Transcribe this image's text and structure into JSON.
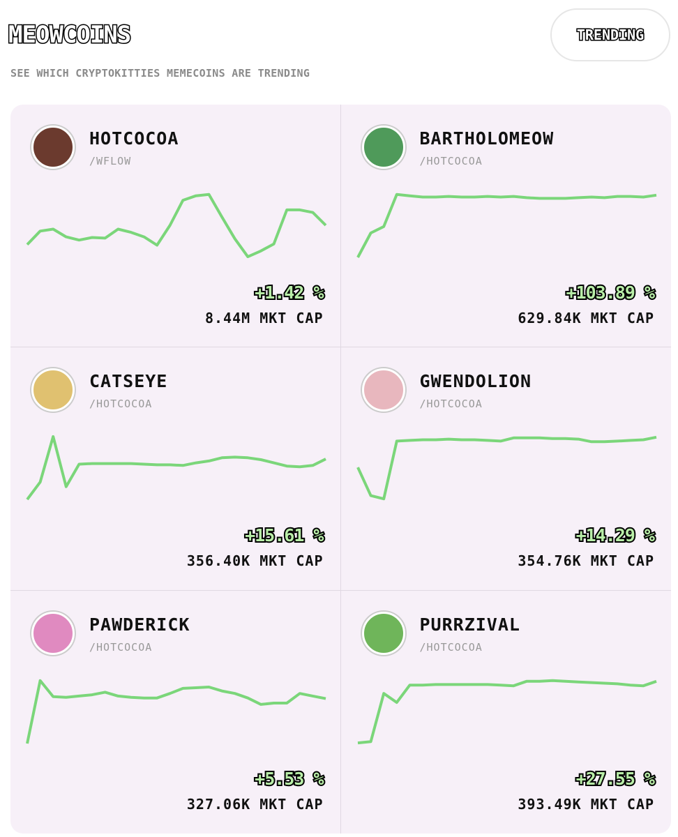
{
  "header": {
    "title": "MEOWCOINS",
    "subtitle": "SEE WHICH CRYPTOKITTIES MEMECOINS ARE TRENDING",
    "button": "TRENDING"
  },
  "cards": [
    {
      "name": "HOTCOCOA",
      "pair": "/WFLOW",
      "change": "+1.42 %",
      "market_cap": "8.44M MKT CAP",
      "icon_color": "#6b3a2e",
      "spark": {
        "color": "#7bd67a",
        "ylim": [
          0,
          100
        ],
        "values": [
          20,
          41,
          44,
          32,
          27,
          31,
          30,
          44,
          39,
          32,
          19,
          50,
          89,
          96,
          98,
          63,
          29,
          1,
          10,
          21,
          74,
          74,
          70,
          50
        ]
      }
    },
    {
      "name": "BARTHOLOMEOW",
      "pair": "/HOTCOCOA",
      "change": "+103.89 %",
      "market_cap": "629.84K MKT CAP",
      "icon_color": "#4f9a5a",
      "spark": {
        "color": "#7bd67a",
        "ylim": [
          0,
          100
        ],
        "values": [
          0,
          38,
          48,
          98,
          96,
          94,
          94,
          95,
          94,
          94,
          95,
          94,
          95,
          93,
          92,
          92,
          92,
          93,
          94,
          93,
          95,
          95,
          94,
          97
        ]
      }
    },
    {
      "name": "CATSEYE",
      "pair": "/HOTCOCOA",
      "change": "+15.61 %",
      "market_cap": "356.40K MKT CAP",
      "icon_color": "#e0c170",
      "spark": {
        "color": "#7bd67a",
        "ylim": [
          0,
          100
        ],
        "values": [
          1,
          28,
          99,
          21,
          56,
          57,
          57,
          57,
          57,
          56,
          55,
          55,
          54,
          58,
          61,
          66,
          67,
          66,
          63,
          58,
          53,
          52,
          54,
          64
        ]
      }
    },
    {
      "name": "GWENDOLION",
      "pair": "/HOTCOCOA",
      "change": "+14.29 %",
      "market_cap": "354.76K MKT CAP",
      "icon_color": "#e8b7be",
      "spark": {
        "color": "#7bd67a",
        "ylim": [
          0,
          100
        ],
        "values": [
          51,
          7,
          2,
          92,
          93,
          94,
          94,
          95,
          94,
          94,
          93,
          92,
          97,
          97,
          97,
          96,
          96,
          95,
          91,
          91,
          92,
          93,
          94,
          98
        ]
      }
    },
    {
      "name": "PAWDERICK",
      "pair": "/HOTCOCOA",
      "change": "+5.53 %",
      "market_cap": "327.06K MKT CAP",
      "icon_color": "#e08ac0",
      "spark": {
        "color": "#7bd67a",
        "ylim": [
          0,
          100
        ],
        "values": [
          0,
          98,
          73,
          72,
          74,
          76,
          80,
          74,
          72,
          71,
          71,
          78,
          86,
          87,
          88,
          82,
          78,
          71,
          61,
          63,
          63,
          78,
          74,
          70
        ]
      }
    },
    {
      "name": "PURRZIVAL",
      "pair": "/HOTCOCOA",
      "change": "+27.55 %",
      "market_cap": "393.49K MKT CAP",
      "icon_color": "#6fb55a",
      "spark": {
        "color": "#7bd67a",
        "ylim": [
          0,
          100
        ],
        "values": [
          1,
          3,
          78,
          64,
          91,
          91,
          92,
          92,
          92,
          92,
          92,
          91,
          90,
          97,
          97,
          98,
          97,
          96,
          95,
          94,
          93,
          91,
          90,
          97
        ]
      }
    }
  ]
}
